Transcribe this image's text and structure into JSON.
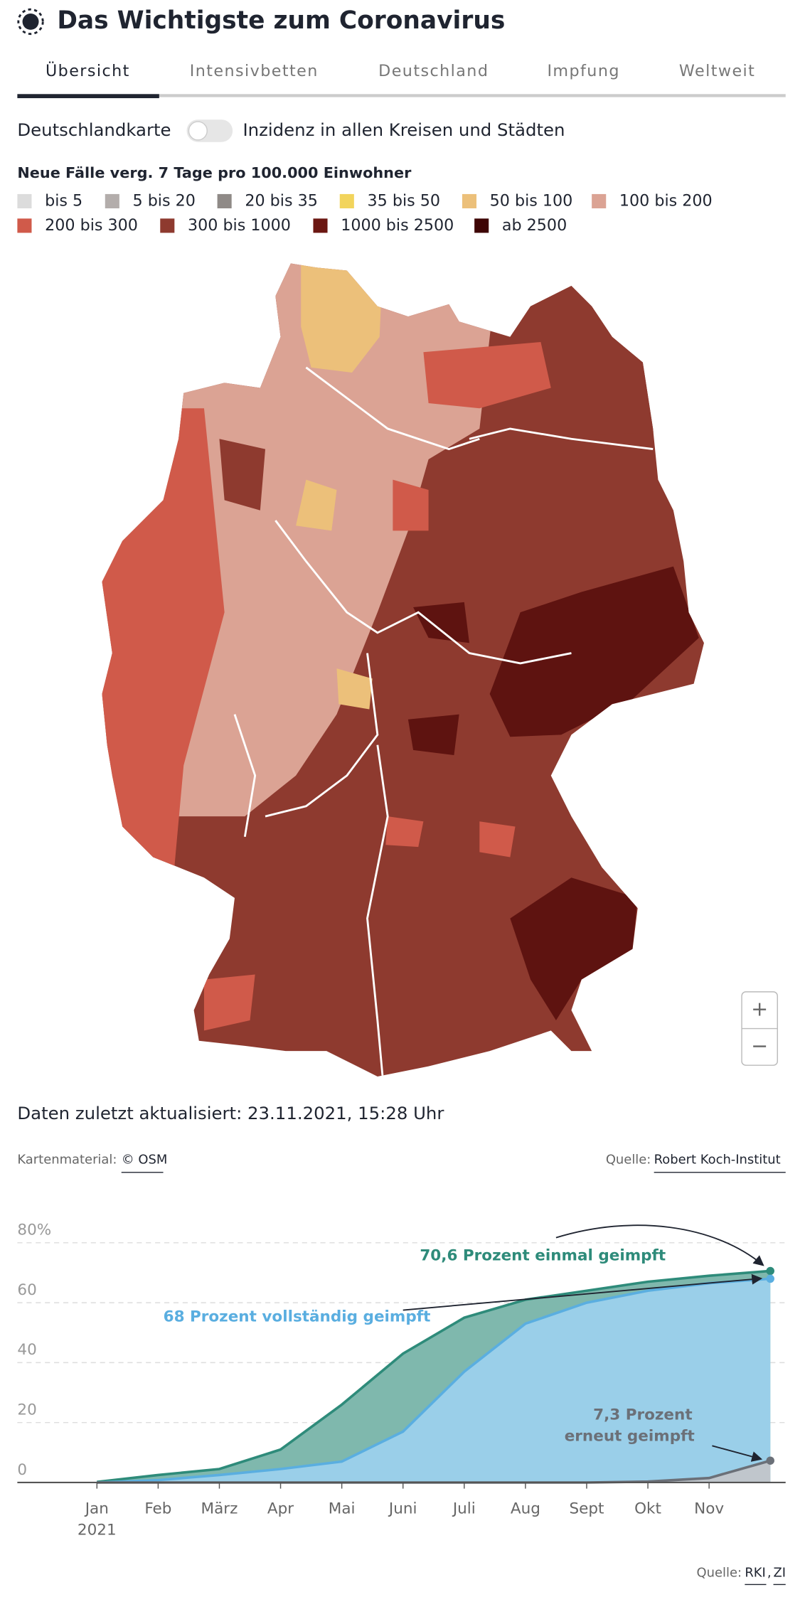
{
  "header": {
    "title": "Das Wichtigste zum Coronavirus"
  },
  "tabs": [
    "Übersicht",
    "Intensivbetten",
    "Deutschland",
    "Impfung",
    "Weltweit"
  ],
  "toggle": {
    "left": "Deutschlandkarte",
    "right": "Inzidenz in allen Kreisen und Städten"
  },
  "legend": {
    "title": "Neue Fälle verg. 7 Tage pro 100.000 Einwohner",
    "items": [
      {
        "label": "bis 5",
        "color": "#dcdcdc"
      },
      {
        "label": "5 bis 20",
        "color": "#b3adab"
      },
      {
        "label": "20 bis 35",
        "color": "#8f8a87"
      },
      {
        "label": "35 bis 50",
        "color": "#f2d45c"
      },
      {
        "label": "50 bis 100",
        "color": "#ecc07a"
      },
      {
        "label": "100 bis 200",
        "color": "#dba394"
      },
      {
        "label": "200 bis 300",
        "color": "#d05a4a"
      },
      {
        "label": "300 bis 1000",
        "color": "#8e3a2f"
      },
      {
        "label": "1000 bis 2500",
        "color": "#6b1712"
      },
      {
        "label": "ab 2500",
        "color": "#3e0505"
      }
    ]
  },
  "zoom": [
    "+",
    "−"
  ],
  "updated": "Daten zuletzt aktualisiert: 23.11.2021, 15:28 Uhr",
  "map_credit": {
    "label": "Kartenmaterial:",
    "link": "© OSM"
  },
  "map_source": {
    "label": "Quelle:",
    "link": "Robert Koch-Institut"
  },
  "chart_data": {
    "type": "area",
    "categories": [
      "Jan",
      "Feb",
      "März",
      "Apr",
      "Mai",
      "Juni",
      "Juli",
      "Aug",
      "Sept",
      "Okt",
      "Nov",
      null
    ],
    "x_year_label": "2021",
    "series": [
      {
        "name": "einmal geimpft",
        "color": "#2e8b7a",
        "fill": "#7fb8ad",
        "values": [
          0.2,
          2.5,
          4.5,
          11,
          26,
          43,
          55,
          61,
          64,
          67,
          69,
          70.6
        ]
      },
      {
        "name": "vollständig geimpft",
        "color": "#5aaee0",
        "fill": "#9acfe9",
        "values": [
          0,
          0.8,
          2.5,
          4.5,
          7,
          17,
          37,
          53,
          60,
          64,
          66.5,
          68
        ]
      },
      {
        "name": "erneut geimpft",
        "color": "#6b7078",
        "fill": "#c0c6cc",
        "values": [
          0,
          0,
          0,
          0,
          0,
          0,
          0,
          0,
          0,
          0.3,
          1.5,
          7.3
        ]
      }
    ],
    "ylim": [
      0,
      80
    ],
    "yticks": [
      0,
      20,
      40,
      60,
      {
        "value": 80,
        "label": "80%"
      }
    ],
    "grid": true,
    "annotations": [
      {
        "text": "70,6 Prozent einmal geimpft",
        "color": "#2e8b7a"
      },
      {
        "text": "68 Prozent vollständig geimpft",
        "color": "#5aaee0"
      },
      {
        "text": "7,3 Prozent",
        "color": "#6b7078"
      },
      {
        "text": "erneut geimpft",
        "color": "#6b7078"
      }
    ],
    "source": {
      "label": "Quelle:",
      "links": [
        "RKI",
        "ZI"
      ],
      "separator": ","
    }
  }
}
